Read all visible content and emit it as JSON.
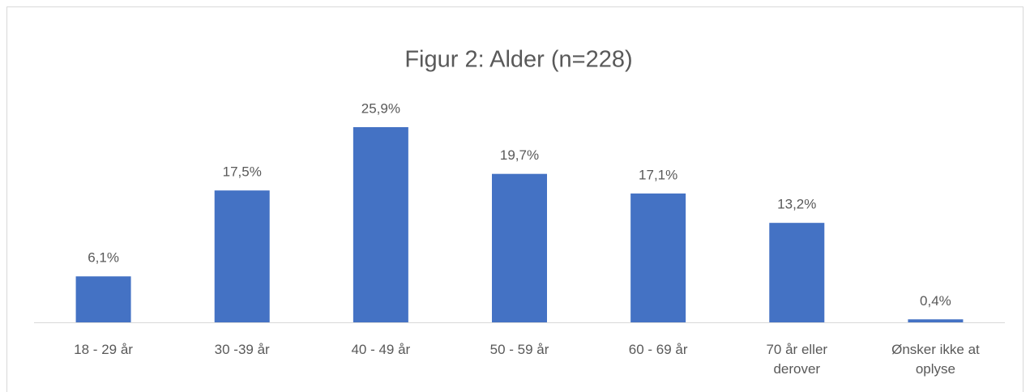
{
  "chart_data": {
    "type": "bar",
    "title": "Figur 2: Alder (n=228)",
    "categories": [
      "18 - 29 år",
      "30 -39 år",
      "40 - 49 år",
      "50 - 59 år",
      "60 - 69 år",
      "70 år eller derover",
      "Ønsker ikke at oplyse"
    ],
    "values": [
      6.1,
      17.5,
      25.9,
      19.7,
      17.1,
      13.2,
      0.4
    ],
    "value_labels": [
      "6,1%",
      "17,5%",
      "25,9%",
      "19,7%",
      "17,1%",
      "13,2%",
      "0,4%"
    ],
    "color": "#4472c4"
  }
}
